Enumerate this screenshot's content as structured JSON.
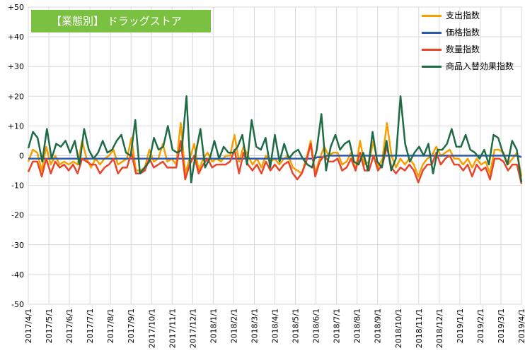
{
  "chart_data": {
    "type": "line",
    "title": "【業態別】 ドラッグストア",
    "ylim": [
      -50,
      50
    ],
    "y_ticks": [
      "+50",
      "+40",
      "+30",
      "+20",
      "+10",
      "0",
      "-10",
      "-20",
      "-30",
      "-40",
      "-50"
    ],
    "x_ticks": [
      "2017/4/1",
      "2017/5/1",
      "2017/6/1",
      "2017/7/1",
      "2017/8/1",
      "2017/9/1",
      "2017/10/1",
      "2017/11/1",
      "2017/12/1",
      "2018/1/1",
      "2018/2/1",
      "2018/3/1",
      "2018/4/1",
      "2018/5/1",
      "2018/6/1",
      "2018/7/1",
      "2018/8/1",
      "2018/9/1",
      "2018/10/1",
      "2018/11/1",
      "2018/12/1",
      "2019/1/1",
      "2019/2/1",
      "2019/3/1",
      "2019/4/1"
    ],
    "grid": true,
    "legend_position": "top-right",
    "series": [
      {
        "name": "支出指数",
        "color": "#f5a000",
        "values": [
          -2,
          2,
          1,
          -5,
          3,
          -3,
          0,
          -3,
          -2,
          -3,
          -2,
          -3,
          5,
          -1,
          -4,
          -1,
          -3,
          -1,
          0,
          2,
          -3,
          -2,
          -1,
          6,
          -5,
          -5,
          -4,
          2,
          -2,
          -1,
          4,
          -2,
          -1,
          -3,
          11,
          -6,
          -1,
          4,
          -5,
          -1,
          1,
          -2,
          -1,
          -2,
          0,
          0,
          7,
          -2,
          3,
          0,
          -3,
          -1,
          -4,
          0,
          -2,
          -1,
          -3,
          -1,
          0,
          -4,
          -5,
          -6,
          -1,
          5,
          -6,
          -1,
          3,
          0,
          1,
          1,
          -3,
          -2,
          1,
          -5,
          5,
          -3,
          -2,
          5,
          -4,
          -1,
          11,
          0,
          -4,
          -1,
          -3,
          -1,
          -3,
          -7,
          -3,
          -1,
          0,
          3,
          0,
          1,
          2,
          -1,
          -1,
          -3,
          -1,
          -4,
          -1,
          -3,
          -2,
          -6,
          2,
          2,
          1,
          -3,
          -1,
          1,
          -7
        ]
      },
      {
        "name": "価格指数",
        "color": "#2e5aa8",
        "values": [
          -1,
          -1,
          -1,
          -1,
          -1,
          -1,
          -1,
          -1,
          -1,
          -1,
          -1,
          -1,
          -1,
          -1,
          -1,
          -1,
          -1,
          -1,
          -1,
          -1,
          -1,
          -1,
          -1,
          -1,
          -1,
          -1,
          -1,
          -1,
          -1,
          -1,
          -1,
          -1,
          -1,
          -1,
          -1,
          -1,
          -1,
          -1,
          -1,
          -1,
          -1,
          -1,
          -1,
          -1,
          -1,
          -1,
          -1,
          -1,
          -1,
          -1,
          -1,
          -1,
          -1,
          -1,
          -1,
          -1,
          -1,
          -1,
          -1,
          -1,
          -1,
          -1,
          -1,
          -1,
          -0.5,
          -0.5,
          0,
          0,
          0,
          0,
          0,
          0,
          0,
          0,
          0,
          0,
          0,
          0,
          0,
          0,
          0,
          0,
          0,
          0,
          0,
          0,
          0,
          0,
          0,
          0,
          0,
          0,
          0,
          0,
          0,
          0,
          0,
          0,
          0,
          0,
          0,
          0,
          0,
          0,
          0,
          0,
          0,
          0,
          0,
          -0.5
        ]
      },
      {
        "name": "数量指数",
        "color": "#e8452a",
        "values": [
          -5.5,
          -2,
          -2,
          -7,
          -1,
          -6,
          -2,
          -4,
          -3,
          -5,
          -3,
          -6,
          -1,
          -2,
          -3,
          -3,
          -6,
          -4,
          -3,
          -1,
          -6,
          -4,
          -4,
          1,
          -6,
          -6,
          -5,
          -1,
          -4,
          -3,
          -2,
          -4,
          -4,
          -4,
          5,
          -8,
          -3,
          0,
          -6,
          -3,
          -1,
          -4,
          -3,
          -3,
          -3,
          -2,
          2,
          -6,
          1,
          -3,
          -5,
          -3,
          -6,
          -2,
          -5,
          -3,
          -5,
          -3,
          -2,
          -6,
          -8,
          -6,
          -2,
          4,
          -7,
          -2,
          0,
          -2,
          -2,
          -1,
          -5,
          -4,
          -1,
          -5,
          1,
          -5,
          -5,
          0,
          -5,
          -3,
          3,
          -4,
          -6,
          -4,
          -5,
          -3,
          -5,
          -9,
          -5,
          -3,
          -3,
          1,
          -3,
          -1,
          0,
          -3,
          -3,
          -5,
          -3,
          -7,
          -3,
          -5,
          -4,
          -8,
          -1,
          -1,
          -2,
          -5,
          -3,
          -3,
          -9.5
        ]
      },
      {
        "name": "商品入替効果指数",
        "color": "#1f6b45",
        "values": [
          2.5,
          8,
          6,
          -2,
          9,
          -1,
          4,
          3,
          5,
          1,
          5,
          -3,
          9,
          2,
          -1,
          1,
          5,
          1,
          2,
          5,
          7,
          1,
          0,
          12,
          -6,
          -4,
          -2,
          6,
          2,
          3,
          10,
          2,
          1,
          2,
          20,
          -9,
          1,
          9,
          -4,
          -1,
          5,
          -1,
          3,
          1,
          1,
          3,
          7,
          -3,
          12,
          3,
          2,
          6,
          -4,
          7,
          -2,
          4,
          -1,
          1,
          2,
          -1,
          -3,
          -4,
          2,
          14,
          -5,
          3,
          7,
          2,
          4,
          5,
          -2,
          -3,
          1,
          -5,
          8,
          -2,
          -4,
          5,
          -5,
          -1,
          20,
          4,
          -2,
          1,
          3,
          0,
          4,
          -6,
          2,
          2,
          4,
          9,
          3,
          3,
          7,
          2,
          1,
          -1,
          2,
          -3,
          7,
          6,
          1,
          -3,
          5,
          2,
          -9
        ]
      }
    ]
  }
}
